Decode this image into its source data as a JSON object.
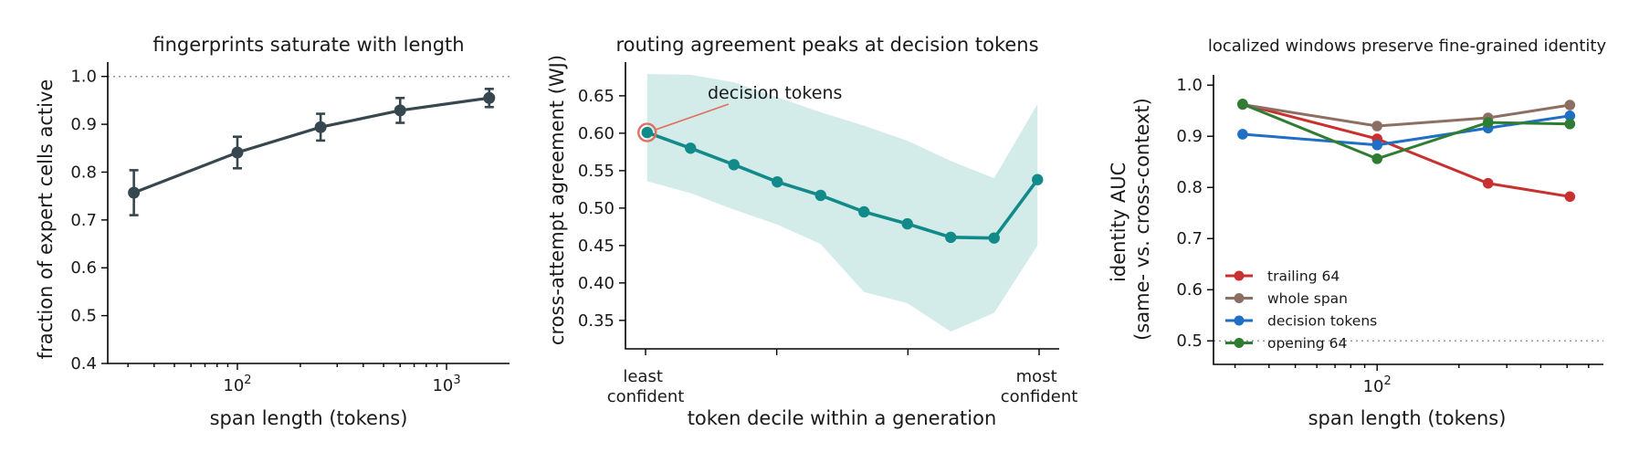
{
  "chart_data": [
    {
      "type": "line",
      "title": "fingerprints saturate with length",
      "xlabel": "span length (tokens)",
      "ylabel": "fraction of expert cells active",
      "xscale": "log",
      "xlim": [
        24,
        2000
      ],
      "ylim": [
        0.4,
        1.03
      ],
      "xticks": [
        {
          "value": 100,
          "base": "10",
          "exp": "2"
        },
        {
          "value": 1000,
          "base": "10",
          "exp": "3"
        }
      ],
      "yticks": [
        0.4,
        0.5,
        0.6,
        0.7,
        0.8,
        0.9,
        1.0
      ],
      "ytick_labels": [
        "0.4",
        "0.5",
        "0.6",
        "0.7",
        "0.8",
        "0.9",
        "1.0"
      ],
      "reference_line": 1.0,
      "color": "#37474f",
      "x": [
        32,
        100,
        250,
        600,
        1600
      ],
      "y": [
        0.757,
        0.841,
        0.894,
        0.929,
        0.955
      ],
      "yerr_low": [
        0.71,
        0.808,
        0.866,
        0.903,
        0.936
      ],
      "yerr_high": [
        0.804,
        0.874,
        0.922,
        0.955,
        0.974
      ]
    },
    {
      "type": "line",
      "title": "routing agreement peaks at decision tokens",
      "xlabel": "token decile within a generation",
      "ylabel": "cross-attempt agreement (WJ)",
      "xlim": [
        -0.5,
        9.5
      ],
      "ylim": [
        0.312,
        0.695
      ],
      "yticks": [
        0.35,
        0.4,
        0.45,
        0.5,
        0.55,
        0.6,
        0.65
      ],
      "ytick_labels": [
        "0.35",
        "0.40",
        "0.45",
        "0.50",
        "0.55",
        "0.60",
        "0.65"
      ],
      "xticks": [
        0,
        3.333,
        6.667,
        10
      ],
      "xtick_label_least": [
        "least",
        "confident"
      ],
      "xtick_label_most": [
        "most",
        "confident"
      ],
      "color": "#138a8a",
      "band_color": "#d3ebe9",
      "x": [
        0,
        1,
        2,
        3,
        4,
        5,
        6,
        7,
        8,
        9
      ],
      "y": [
        0.601,
        0.58,
        0.558,
        0.535,
        0.517,
        0.495,
        0.479,
        0.461,
        0.46,
        0.538
      ],
      "band_low": [
        0.536,
        0.52,
        0.498,
        0.478,
        0.452,
        0.388,
        0.373,
        0.335,
        0.36,
        0.45
      ],
      "band_high": [
        0.679,
        0.678,
        0.668,
        0.648,
        0.628,
        0.61,
        0.59,
        0.563,
        0.54,
        0.639
      ],
      "annotation": {
        "text": "decision tokens",
        "x": 0,
        "y": 0.601,
        "color": "#e07060"
      }
    },
    {
      "type": "line",
      "title": "localized windows preserve fine-grained identity",
      "xlabel": "span length (tokens)",
      "ylabel": [
        "identity AUC",
        "(same- vs. cross-context)"
      ],
      "xscale": "log",
      "xlim": [
        25,
        680
      ],
      "ylim": [
        0.454,
        1.02
      ],
      "xticks": [
        {
          "value": 100,
          "base": "10",
          "exp": "2"
        }
      ],
      "yticks": [
        0.5,
        0.6,
        0.7,
        0.8,
        0.9,
        1.0
      ],
      "ytick_labels": [
        "0.5",
        "0.6",
        "0.7",
        "0.8",
        "0.9",
        "1.0"
      ],
      "reference_line": 0.5,
      "legend_position": "lower left",
      "x": [
        32,
        100,
        256,
        512
      ],
      "series": [
        {
          "name": "trailing 64",
          "color": "#c8312f",
          "values": [
            0.963,
            0.895,
            0.808,
            0.782
          ]
        },
        {
          "name": "whole span",
          "color": "#8d6e63",
          "values": [
            0.962,
            0.92,
            0.936,
            0.961
          ]
        },
        {
          "name": "decision tokens",
          "color": "#1f6fc5",
          "values": [
            0.904,
            0.883,
            0.916,
            0.94
          ]
        },
        {
          "name": "opening 64",
          "color": "#2e7d32",
          "values": [
            0.963,
            0.856,
            0.927,
            0.924
          ]
        }
      ]
    }
  ]
}
